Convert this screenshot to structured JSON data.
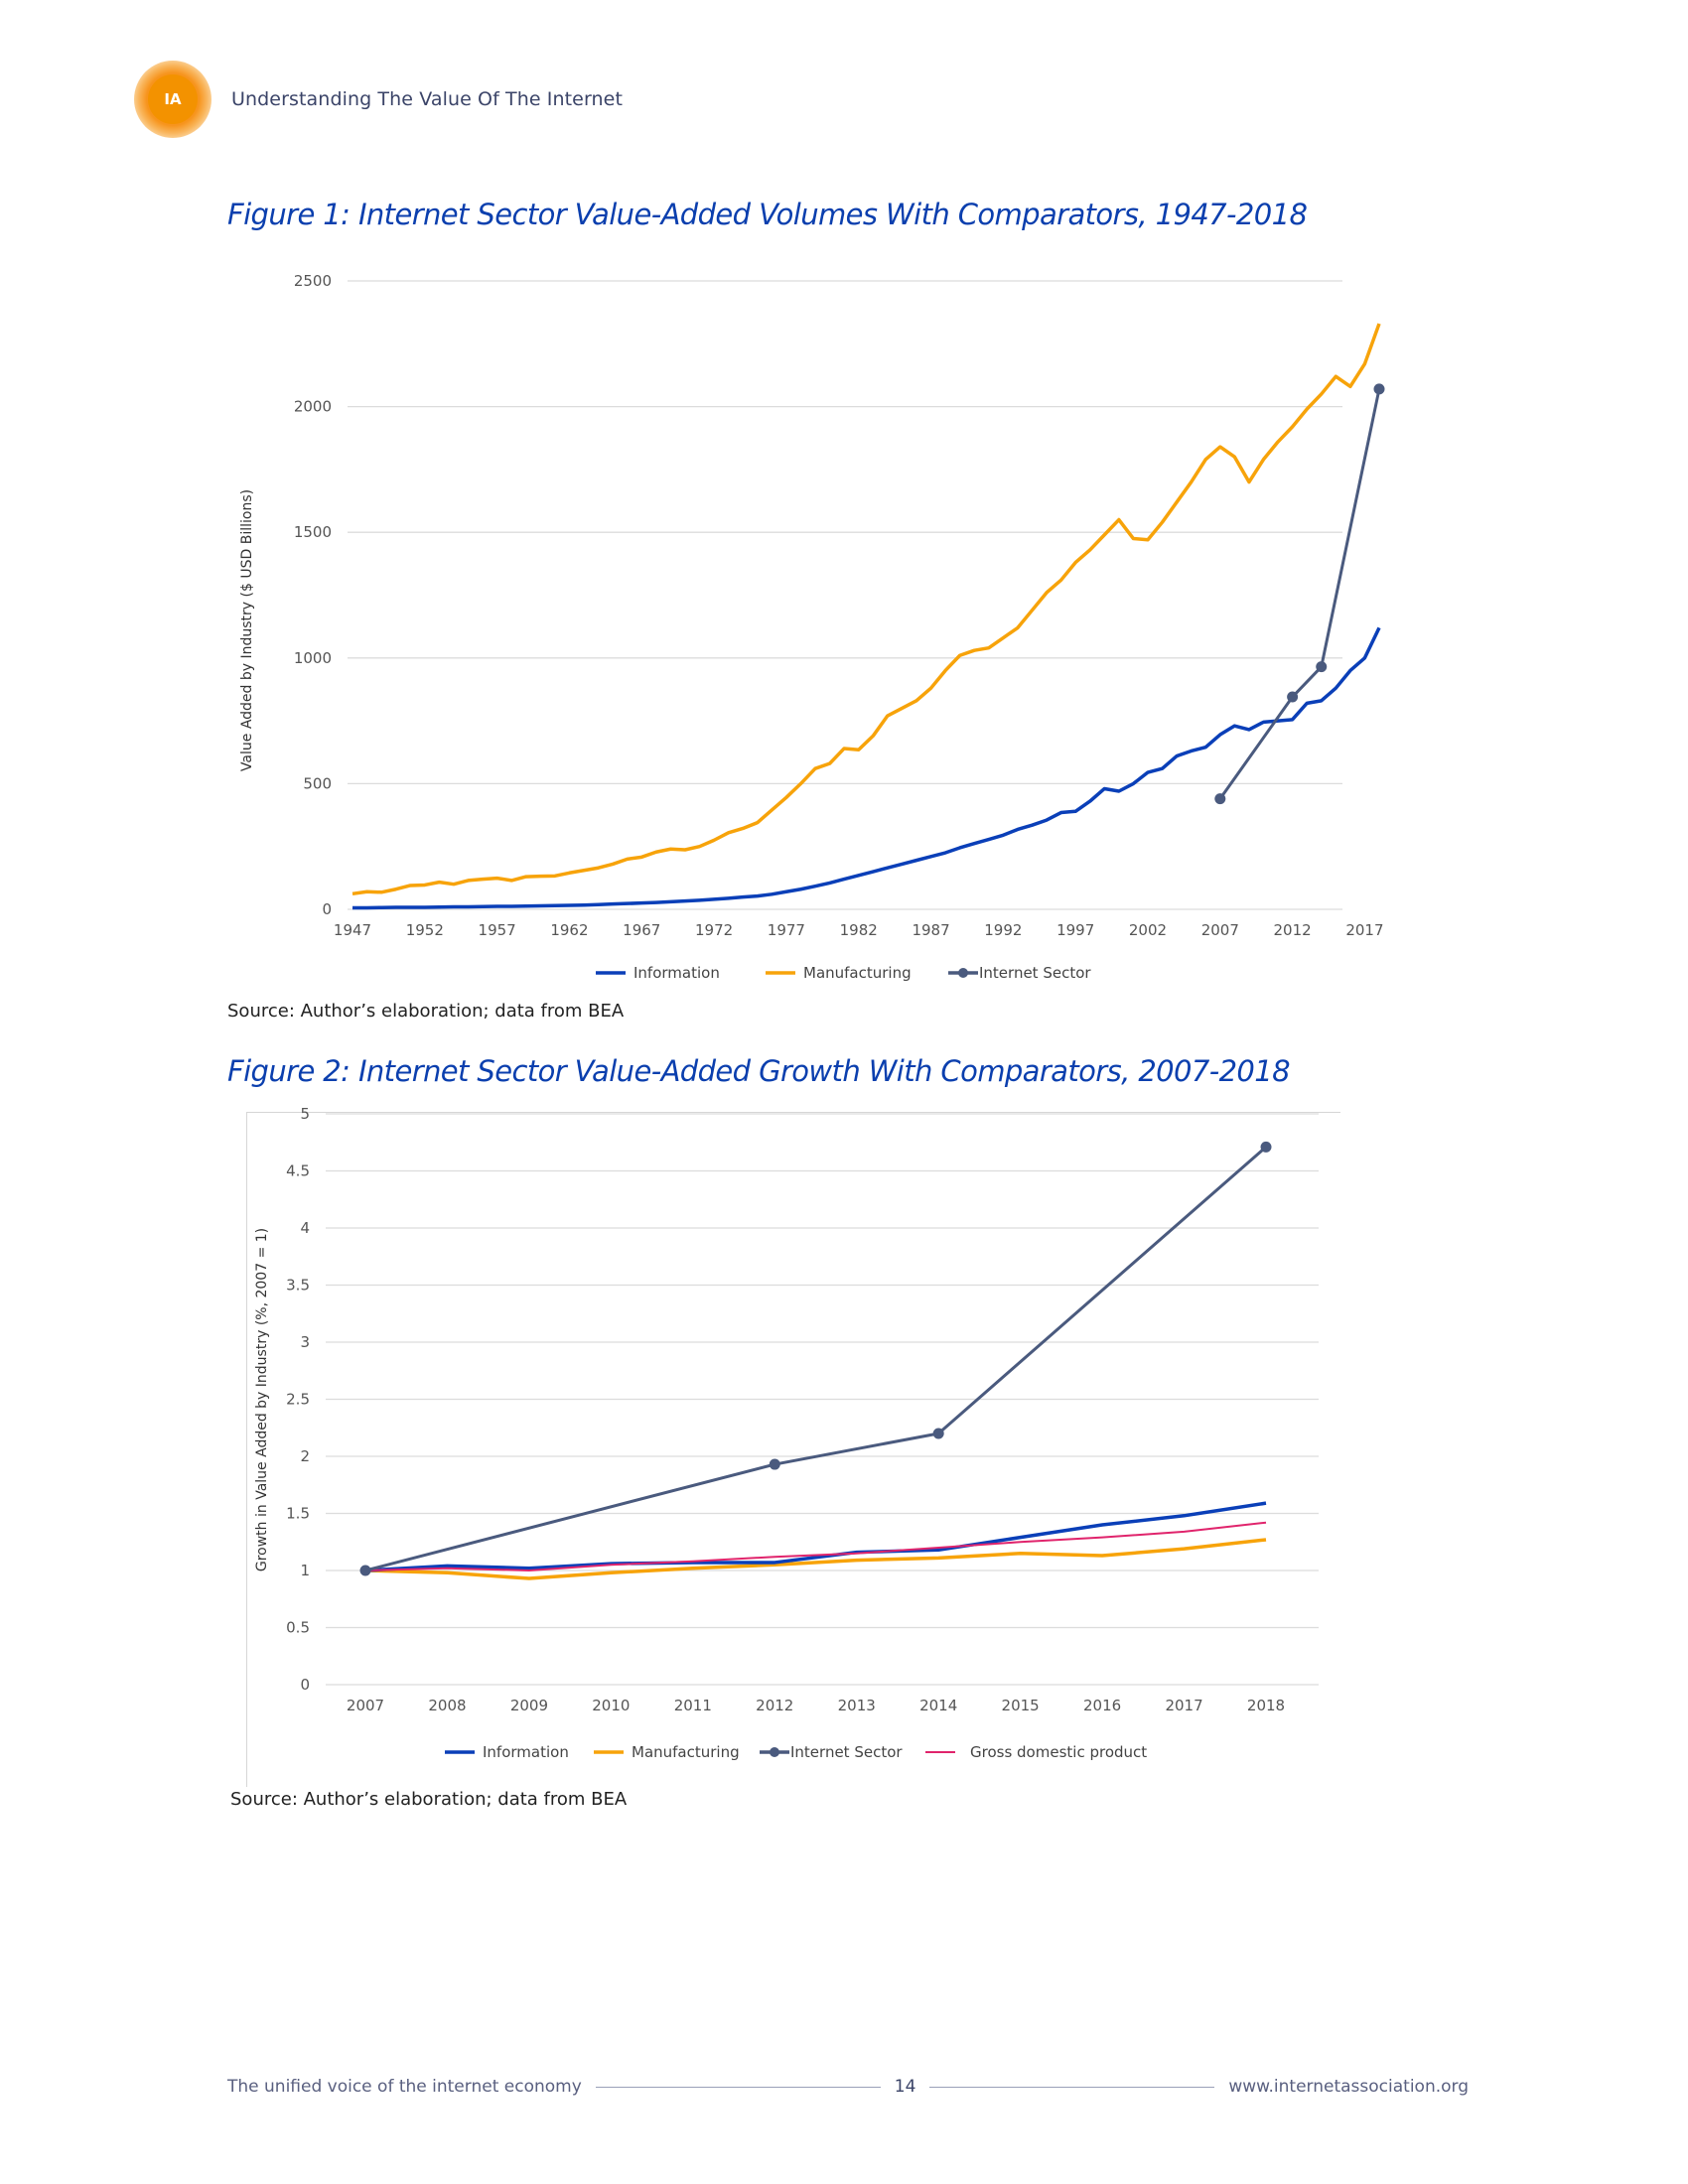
{
  "header": {
    "logo_text": "IA",
    "title": "Understanding The Value Of The Internet"
  },
  "figures": [
    {
      "title": "Figure 1: Internet Sector Value-Added Volumes With Comparators, 1947-2018",
      "source": "Source: Author’s elaboration; data from BEA"
    },
    {
      "title": "Figure 2: Internet Sector Value-Added Growth With Comparators, 2007-2018",
      "source": "Source: Author’s elaboration; data from BEA"
    }
  ],
  "footer": {
    "tagline": "The unified voice of the internet economy",
    "page_number": "14",
    "website": "www.internetassociation.org"
  },
  "colors": {
    "information": "#0a3fb8",
    "manufacturing": "#f7a30a",
    "internet_sector": "#4a5a7e",
    "gdp": "#e0246c",
    "grid": "#d9d9d9",
    "title": "#0b3fae"
  },
  "chart_data": [
    {
      "type": "line",
      "title": "Figure 1: Internet Sector Value-Added Volumes With Comparators, 1947-2018",
      "xlabel": "",
      "ylabel": "Value Added by Industry ($ USD Billions)",
      "ylim": [
        0,
        2500
      ],
      "yticks": [
        "0",
        "500",
        "1000",
        "1500",
        "2000",
        "2500"
      ],
      "xticks": [
        "1947",
        "1952",
        "1957",
        "1962",
        "1967",
        "1972",
        "1977",
        "1982",
        "1987",
        "1992",
        "1997",
        "2002",
        "2007",
        "2012",
        "2017"
      ],
      "grid": true,
      "legend_position": "bottom",
      "x": [
        1947,
        1948,
        1949,
        1950,
        1951,
        1952,
        1953,
        1954,
        1955,
        1956,
        1957,
        1958,
        1959,
        1960,
        1961,
        1962,
        1963,
        1964,
        1965,
        1966,
        1967,
        1968,
        1969,
        1970,
        1971,
        1972,
        1973,
        1974,
        1975,
        1976,
        1977,
        1978,
        1979,
        1980,
        1981,
        1982,
        1983,
        1984,
        1985,
        1986,
        1987,
        1988,
        1989,
        1990,
        1991,
        1992,
        1993,
        1994,
        1995,
        1996,
        1997,
        1998,
        1999,
        2000,
        2001,
        2002,
        2003,
        2004,
        2005,
        2006,
        2007,
        2008,
        2009,
        2010,
        2011,
        2012,
        2013,
        2014,
        2015,
        2016,
        2017,
        2018
      ],
      "series": [
        {
          "name": "Information",
          "color": "#0a3fb8",
          "values": [
            6,
            6,
            7,
            8,
            8,
            8,
            9,
            10,
            10,
            11,
            12,
            12,
            13,
            14,
            15,
            16,
            17,
            19,
            21,
            23,
            25,
            27,
            30,
            33,
            36,
            40,
            44,
            49,
            53,
            60,
            70,
            80,
            92,
            105,
            120,
            135,
            150,
            165,
            180,
            195,
            210,
            225,
            245,
            262,
            278,
            295,
            318,
            335,
            355,
            385,
            390,
            430,
            480,
            470,
            500,
            545,
            560,
            610,
            630,
            645,
            695,
            730,
            715,
            745,
            750,
            755,
            820,
            830,
            880,
            950,
            1000,
            1120
          ]
        },
        {
          "name": "Manufacturing",
          "color": "#f7a30a",
          "values": [
            62,
            70,
            68,
            80,
            95,
            97,
            108,
            100,
            115,
            120,
            124,
            115,
            130,
            132,
            133,
            145,
            155,
            165,
            180,
            200,
            208,
            228,
            240,
            237,
            250,
            275,
            305,
            322,
            345,
            395,
            445,
            500,
            560,
            580,
            640,
            635,
            690,
            770,
            800,
            830,
            880,
            950,
            1010,
            1030,
            1040,
            1080,
            1120,
            1190,
            1260,
            1310,
            1380,
            1430,
            1490,
            1550,
            1475,
            1470,
            1540,
            1620,
            1700,
            1790,
            1840,
            1800,
            1700,
            1790,
            1860,
            1920,
            1990,
            2050,
            2120,
            2080,
            2170,
            2330
          ]
        },
        {
          "name": "Internet Sector",
          "color": "#4a5a7e",
          "markers": true,
          "points": [
            {
              "x": 2007,
              "y": 440
            },
            {
              "x": 2012,
              "y": 845
            },
            {
              "x": 2014,
              "y": 965
            },
            {
              "x": 2018,
              "y": 2070
            }
          ]
        }
      ]
    },
    {
      "type": "line",
      "title": "Figure 2: Internet Sector Value-Added Growth With Comparators, 2007-2018",
      "xlabel": "",
      "ylabel": "Growth in Value Added by Industry (%, 2007 = 1)",
      "ylim": [
        0,
        5
      ],
      "yticks": [
        "0",
        "0.5",
        "1",
        "1.5",
        "2",
        "2.5",
        "3",
        "3.5",
        "4",
        "4.5",
        "5"
      ],
      "categories": [
        "2007",
        "2008",
        "2009",
        "2010",
        "2011",
        "2012",
        "2013",
        "2014",
        "2015",
        "2016",
        "2017",
        "2018"
      ],
      "grid": true,
      "legend_position": "bottom",
      "series": [
        {
          "name": "Information",
          "color": "#0a3fb8",
          "values": [
            1.0,
            1.04,
            1.02,
            1.06,
            1.07,
            1.07,
            1.16,
            1.18,
            1.29,
            1.4,
            1.48,
            1.59
          ]
        },
        {
          "name": "Manufacturing",
          "color": "#f7a30a",
          "values": [
            1.0,
            0.98,
            0.93,
            0.98,
            1.02,
            1.05,
            1.09,
            1.11,
            1.15,
            1.13,
            1.19,
            1.27
          ]
        },
        {
          "name": "Internet Sector",
          "color": "#4a5a7e",
          "markers": true,
          "points": [
            {
              "x": "2007",
              "y": 1.0
            },
            {
              "x": "2012",
              "y": 1.93
            },
            {
              "x": "2014",
              "y": 2.2
            },
            {
              "x": "2018",
              "y": 4.71
            }
          ]
        },
        {
          "name": "Gross domestic product",
          "color": "#e0246c",
          "values": [
            1.0,
            1.02,
            1.0,
            1.05,
            1.08,
            1.12,
            1.15,
            1.2,
            1.25,
            1.29,
            1.34,
            1.42
          ]
        }
      ]
    }
  ]
}
